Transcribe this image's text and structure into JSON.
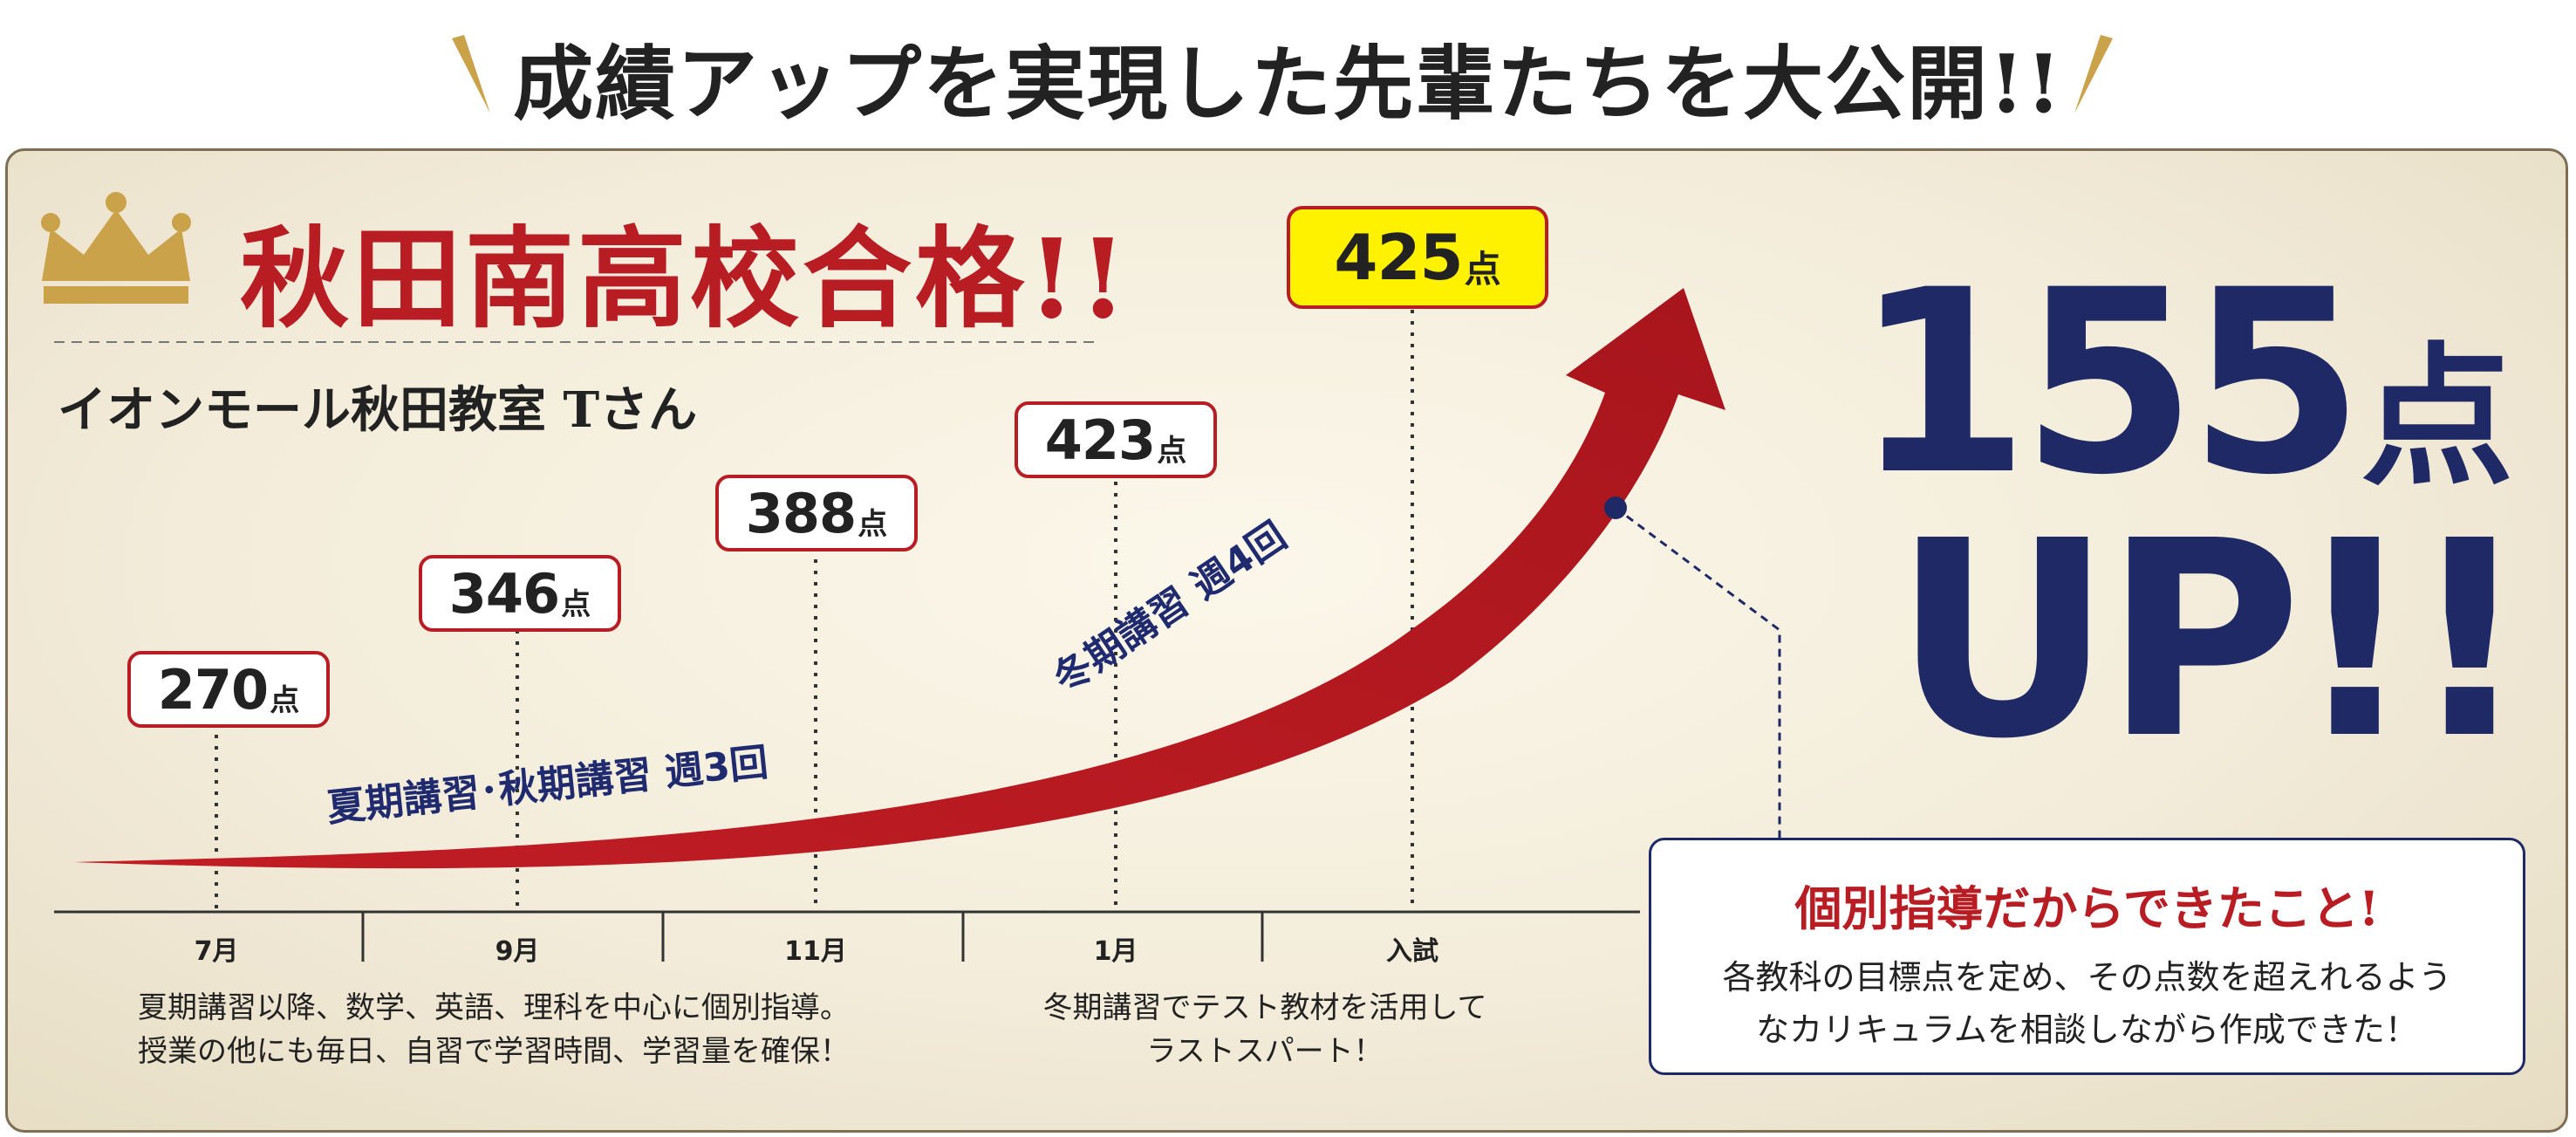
{
  "headline": "成績アップを実現した先輩たちを大公開!!",
  "badge": {
    "icon": "crown-icon",
    "school": "秋田南高校合格!!",
    "student": "イオンモール秋田教室 Tさん"
  },
  "scores": [
    {
      "month": "7月",
      "value": "270",
      "unit": "点"
    },
    {
      "month": "9月",
      "value": "346",
      "unit": "点"
    },
    {
      "month": "11月",
      "value": "388",
      "unit": "点"
    },
    {
      "month": "1月",
      "value": "423",
      "unit": "点"
    },
    {
      "month": "入試",
      "value": "425",
      "unit": "点"
    }
  ],
  "courses": {
    "summer_autumn": "夏期講習･秋期講習 週3回",
    "winter": "冬期講習 週4回"
  },
  "descriptions": {
    "left_line1": "夏期講習以降、数学、英語、理科を中心に個別指導。",
    "left_line2": "授業の他にも毎日、自習で学習時間、学習量を確保！",
    "right_line1": "冬期講習でテスト教材を活用して",
    "right_line2": "ラストスパート！"
  },
  "gain": {
    "amount": "155",
    "unit": "点",
    "up": "UP!!"
  },
  "infobox": {
    "title": "個別指導だからできたこと!",
    "line1": "各教科の目標点を定め、その点数を超えれるよう",
    "line2": "なカリキュラムを相談しながら作成できた！"
  },
  "colors": {
    "accent_red": "#b81d24",
    "navy": "#1f2966",
    "highlight": "#fff200",
    "gold": "#c9a24a"
  }
}
